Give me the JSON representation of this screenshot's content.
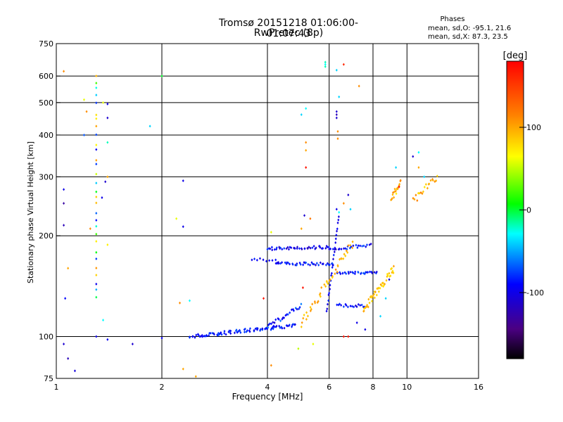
{
  "header": {
    "title_line1": "Tromsø 20151218 01:06:00-01:07:43",
    "title_line2": "RwPretec (8p)"
  },
  "phase_stats": {
    "heading": "Phases",
    "line_o": "mean, sd,O: -95.1, 21.6",
    "line_x": "mean, sd,X:  87.3, 23.5"
  },
  "colorbar": {
    "title": "[deg]",
    "range": [
      -180,
      180
    ],
    "tick_labels": [
      "100",
      "0",
      "-100"
    ],
    "tick_values": [
      100,
      0,
      -100
    ],
    "colors": [
      "#000000",
      "#4b0082",
      "#0000ff",
      "#00ffff",
      "#00ff00",
      "#ffff00",
      "#ff8000",
      "#ff0000"
    ]
  },
  "chart_data": {
    "type": "scatter",
    "title": "Tromsø 20151218 01:06:00-01:07:43",
    "subtitle": "RwPretec (8p)",
    "xlabel": "Frequency [MHz]",
    "ylabel": "Stationary phase Virtual Height [km]",
    "x_scale": "log",
    "y_scale": "log",
    "xlim": [
      1,
      16
    ],
    "ylim": [
      75,
      750
    ],
    "x_ticks": [
      1,
      2,
      4,
      6,
      8,
      10,
      16
    ],
    "x_tick_labels": [
      "1",
      "2",
      "4",
      "6",
      "8",
      "10",
      "16"
    ],
    "y_ticks": [
      75,
      100,
      200,
      300,
      400,
      500,
      600,
      750
    ],
    "y_tick_labels": [
      "75",
      "100",
      "200",
      "300",
      "400",
      "500",
      "600",
      "750"
    ],
    "x_gridlines": [
      2,
      4,
      6,
      8,
      10
    ],
    "y_gridlines": [
      100,
      200,
      300,
      400,
      500,
      600
    ],
    "grid": true,
    "color_axis": "phase [deg]",
    "traces": [
      {
        "x_start": 2.4,
        "x_end": 4.8,
        "y_start": 100,
        "y_end": 108,
        "n": 90,
        "phase_min": -105,
        "phase_max": -70,
        "jitter_y": 0.012
      },
      {
        "x_start": 4.0,
        "x_end": 5.0,
        "y_start": 107,
        "y_end": 124,
        "n": 25,
        "phase_min": -110,
        "phase_max": -60,
        "jitter_y": 0.015
      },
      {
        "x_start": 4.0,
        "x_end": 6.0,
        "y_start": 183,
        "y_end": 185,
        "n": 45,
        "phase_min": -120,
        "phase_max": -75,
        "jitter_y": 0.01
      },
      {
        "x_start": 4.2,
        "x_end": 6.2,
        "y_start": 165,
        "y_end": 165,
        "n": 40,
        "phase_min": -110,
        "phase_max": -70,
        "jitter_y": 0.01
      },
      {
        "x_start": 3.6,
        "x_end": 4.3,
        "y_start": 171,
        "y_end": 168,
        "n": 10,
        "phase_min": -110,
        "phase_max": -80,
        "jitter_y": 0.01
      },
      {
        "x_start": 6.0,
        "x_end": 7.9,
        "y_start": 183,
        "y_end": 187,
        "n": 25,
        "phase_min": -120,
        "phase_max": -70,
        "jitter_y": 0.012
      },
      {
        "x_start": 6.3,
        "x_end": 8.2,
        "y_start": 155,
        "y_end": 155,
        "n": 30,
        "phase_min": -110,
        "phase_max": -70,
        "jitter_y": 0.008
      },
      {
        "x_start": 6.3,
        "x_end": 7.6,
        "y_start": 124,
        "y_end": 124,
        "n": 18,
        "phase_min": -110,
        "phase_max": -70,
        "jitter_y": 0.012
      },
      {
        "x_start": 5.9,
        "x_end": 6.4,
        "y_start": 118,
        "y_end": 230,
        "n": 25,
        "phase_min": -110,
        "phase_max": -80,
        "jitter_y": 0.01
      },
      {
        "x_start": 1.3,
        "x_end": 1.3,
        "y_start": 130,
        "y_end": 610,
        "n": 30,
        "phase_min": -110,
        "phase_max": 110,
        "jitter_y": 0.02
      },
      {
        "x_start": 5.0,
        "x_end": 7.0,
        "y_start": 110,
        "y_end": 190,
        "n": 45,
        "phase_min": 80,
        "phase_max": 110,
        "jitter_y": 0.03
      },
      {
        "x_start": 7.5,
        "x_end": 9.2,
        "y_start": 120,
        "y_end": 160,
        "n": 45,
        "phase_min": 75,
        "phase_max": 105,
        "jitter_y": 0.03
      },
      {
        "x_start": 9.0,
        "x_end": 9.6,
        "y_start": 255,
        "y_end": 290,
        "n": 18,
        "phase_min": 70,
        "phase_max": 120,
        "jitter_y": 0.03
      },
      {
        "x_start": 10.4,
        "x_end": 12.2,
        "y_start": 255,
        "y_end": 300,
        "n": 20,
        "phase_min": 75,
        "phase_max": 120,
        "jitter_y": 0.03
      }
    ],
    "points": [
      {
        "x": 1.05,
        "y": 95,
        "phase": -110
      },
      {
        "x": 1.08,
        "y": 86,
        "phase": -120
      },
      {
        "x": 1.13,
        "y": 79,
        "phase": -105
      },
      {
        "x": 1.3,
        "y": 100,
        "phase": -100
      },
      {
        "x": 1.4,
        "y": 98,
        "phase": -95
      },
      {
        "x": 1.65,
        "y": 95,
        "phase": -110
      },
      {
        "x": 2.0,
        "y": 99,
        "phase": -95
      },
      {
        "x": 2.3,
        "y": 80,
        "phase": 100
      },
      {
        "x": 2.5,
        "y": 76,
        "phase": 100
      },
      {
        "x": 2.25,
        "y": 126,
        "phase": 110
      },
      {
        "x": 2.4,
        "y": 128,
        "phase": -30
      },
      {
        "x": 2.2,
        "y": 225,
        "phase": 60
      },
      {
        "x": 2.3,
        "y": 213,
        "phase": -100
      },
      {
        "x": 2.3,
        "y": 292,
        "phase": -100
      },
      {
        "x": 1.85,
        "y": 425,
        "phase": -40
      },
      {
        "x": 2.0,
        "y": 600,
        "phase": 0
      },
      {
        "x": 1.05,
        "y": 620,
        "phase": 110
      },
      {
        "x": 1.05,
        "y": 275,
        "phase": -100
      },
      {
        "x": 1.05,
        "y": 250,
        "phase": -130
      },
      {
        "x": 1.05,
        "y": 215,
        "phase": -120
      },
      {
        "x": 1.08,
        "y": 160,
        "phase": 100
      },
      {
        "x": 1.06,
        "y": 130,
        "phase": -90
      },
      {
        "x": 1.2,
        "y": 400,
        "phase": -70
      },
      {
        "x": 1.22,
        "y": 470,
        "phase": 110
      },
      {
        "x": 1.25,
        "y": 210,
        "phase": 110
      },
      {
        "x": 1.38,
        "y": 290,
        "phase": -110
      },
      {
        "x": 1.4,
        "y": 300,
        "phase": 100
      },
      {
        "x": 1.4,
        "y": 380,
        "phase": -20
      },
      {
        "x": 1.4,
        "y": 450,
        "phase": -110
      },
      {
        "x": 1.4,
        "y": 495,
        "phase": -100
      },
      {
        "x": 1.4,
        "y": 188,
        "phase": 70
      },
      {
        "x": 1.36,
        "y": 112,
        "phase": -30
      },
      {
        "x": 1.36,
        "y": 500,
        "phase": 60
      },
      {
        "x": 1.2,
        "y": 510,
        "phase": 60
      },
      {
        "x": 1.35,
        "y": 260,
        "phase": -100
      },
      {
        "x": 5.15,
        "y": 480,
        "phase": -30
      },
      {
        "x": 5.0,
        "y": 460,
        "phase": -40
      },
      {
        "x": 5.15,
        "y": 380,
        "phase": 110
      },
      {
        "x": 5.15,
        "y": 360,
        "phase": 100
      },
      {
        "x": 5.15,
        "y": 320,
        "phase": 170
      },
      {
        "x": 5.1,
        "y": 230,
        "phase": -110
      },
      {
        "x": 5.3,
        "y": 225,
        "phase": 120
      },
      {
        "x": 5.0,
        "y": 210,
        "phase": 100
      },
      {
        "x": 4.1,
        "y": 205,
        "phase": 60
      },
      {
        "x": 4.1,
        "y": 82,
        "phase": 110
      },
      {
        "x": 4.9,
        "y": 92,
        "phase": 50
      },
      {
        "x": 5.4,
        "y": 95,
        "phase": 60
      },
      {
        "x": 3.9,
        "y": 130,
        "phase": 170
      },
      {
        "x": 5.05,
        "y": 140,
        "phase": 170
      },
      {
        "x": 5.85,
        "y": 660,
        "phase": -20
      },
      {
        "x": 5.85,
        "y": 650,
        "phase": -30
      },
      {
        "x": 5.85,
        "y": 640,
        "phase": -20
      },
      {
        "x": 6.3,
        "y": 625,
        "phase": -40
      },
      {
        "x": 6.6,
        "y": 650,
        "phase": 160
      },
      {
        "x": 7.3,
        "y": 560,
        "phase": 110
      },
      {
        "x": 6.4,
        "y": 520,
        "phase": -40
      },
      {
        "x": 6.3,
        "y": 470,
        "phase": -110
      },
      {
        "x": 6.3,
        "y": 460,
        "phase": -120
      },
      {
        "x": 6.3,
        "y": 450,
        "phase": -110
      },
      {
        "x": 6.35,
        "y": 410,
        "phase": 110
      },
      {
        "x": 6.35,
        "y": 390,
        "phase": 110
      },
      {
        "x": 6.3,
        "y": 240,
        "phase": -100
      },
      {
        "x": 6.4,
        "y": 235,
        "phase": -30
      },
      {
        "x": 6.8,
        "y": 265,
        "phase": -110
      },
      {
        "x": 6.9,
        "y": 240,
        "phase": -40
      },
      {
        "x": 6.6,
        "y": 250,
        "phase": 110
      },
      {
        "x": 6.6,
        "y": 100,
        "phase": 170
      },
      {
        "x": 6.8,
        "y": 100,
        "phase": 170
      },
      {
        "x": 7.2,
        "y": 110,
        "phase": -100
      },
      {
        "x": 7.6,
        "y": 105,
        "phase": -100
      },
      {
        "x": 9.3,
        "y": 320,
        "phase": -40
      },
      {
        "x": 9.5,
        "y": 280,
        "phase": 170
      },
      {
        "x": 10.4,
        "y": 345,
        "phase": -110
      },
      {
        "x": 10.8,
        "y": 355,
        "phase": -30
      },
      {
        "x": 10.8,
        "y": 320,
        "phase": 100
      },
      {
        "x": 11.2,
        "y": 300,
        "phase": -40
      },
      {
        "x": 8.4,
        "y": 115,
        "phase": -40
      },
      {
        "x": 8.7,
        "y": 130,
        "phase": -40
      },
      {
        "x": 8.9,
        "y": 148,
        "phase": -100
      }
    ]
  }
}
